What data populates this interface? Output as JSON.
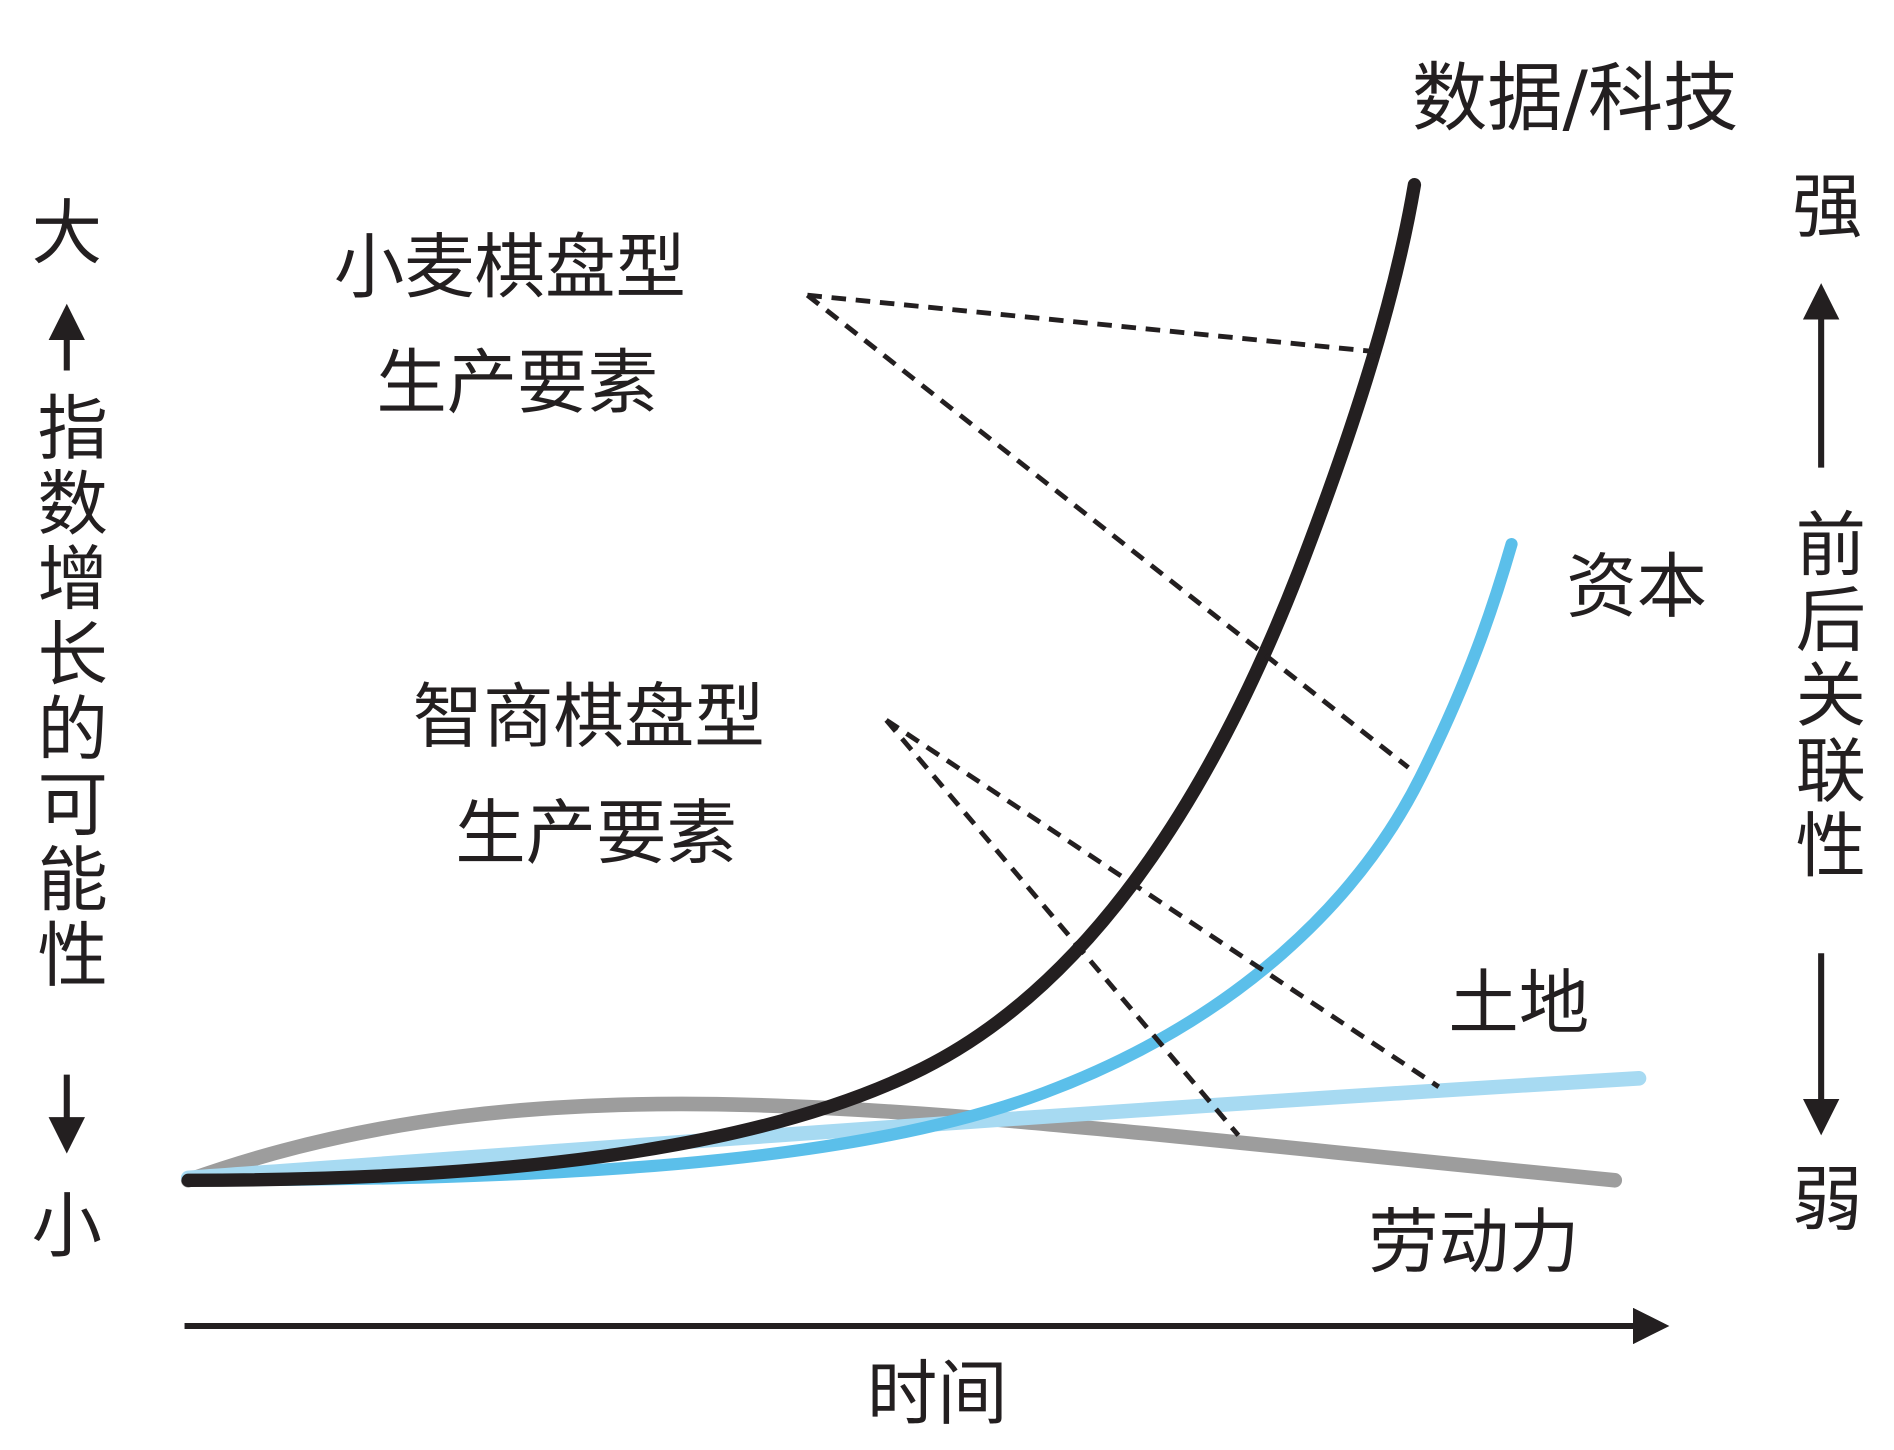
{
  "left_axis": {
    "top": "大",
    "label": "指数增长的可能性",
    "bottom": "小"
  },
  "right_axis": {
    "top": "强",
    "label": "前后关联性",
    "bottom": "弱"
  },
  "x_axis": {
    "label": "时间"
  },
  "curves": [
    {
      "label": "数据/科技"
    },
    {
      "label": "资本"
    },
    {
      "label": "土地"
    },
    {
      "label": "劳动力"
    }
  ],
  "annotations": [
    {
      "lines": [
        "小麦棋盘型",
        "生产要素"
      ]
    },
    {
      "lines": [
        "智商棋盘型",
        "生产要素"
      ]
    }
  ]
}
